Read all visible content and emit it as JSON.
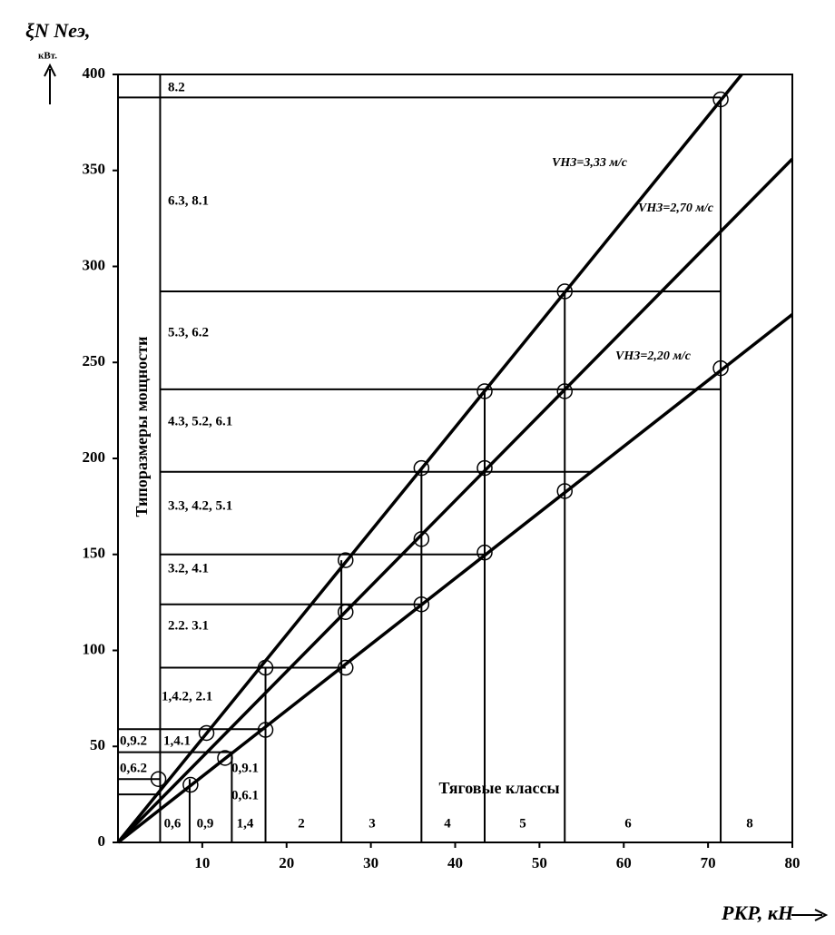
{
  "chart_data": {
    "type": "line",
    "y_label": "ξN Nеэ,",
    "y_unit": "кВт.",
    "x_label": "PКР, кН",
    "xlim": [
      0,
      80
    ],
    "ylim": [
      0,
      400
    ],
    "xticks": [
      10,
      20,
      30,
      40,
      50,
      60,
      70,
      80
    ],
    "yticks": [
      0,
      50,
      100,
      150,
      200,
      250,
      300,
      350,
      400
    ],
    "series": [
      {
        "name": "VНЗ=3,33 м/с",
        "color": "#000000",
        "x": [
          0,
          74
        ],
        "values": [
          0,
          400
        ],
        "markers": {
          "x": [
            10.5,
            17.5,
            27,
            36,
            43.5,
            53,
            71.5
          ],
          "values": [
            57,
            91,
            147,
            195,
            235,
            287,
            387
          ]
        }
      },
      {
        "name": "VНЗ=2,70 м/с",
        "color": "#000000",
        "x": [
          0,
          80
        ],
        "values": [
          0,
          356
        ],
        "markers": {
          "x": [
            12.7,
            27,
            36,
            43.5,
            53
          ],
          "values": [
            44,
            120,
            158,
            195,
            235
          ]
        }
      },
      {
        "name": "VНЗ=2,20 м/с",
        "color": "#000000",
        "x": [
          0,
          80
        ],
        "values": [
          0,
          275
        ],
        "markers": {
          "x": [
            4.8,
            8.6,
            17.5,
            27,
            36,
            43.5,
            53,
            71.5
          ],
          "values": [
            33,
            30,
            58.6,
            91,
            124,
            151,
            183,
            247
          ]
        }
      }
    ],
    "hlines": [
      {
        "value": 388,
        "from": 0,
        "to": 71.5
      },
      {
        "value": 287,
        "from": 5,
        "to": 71.5
      },
      {
        "value": 236,
        "from": 5,
        "to": 71.5
      },
      {
        "value": 193,
        "from": 5,
        "to": 56
      },
      {
        "value": 150,
        "from": 5,
        "to": 43.5
      },
      {
        "value": 124,
        "from": 5,
        "to": 36
      },
      {
        "value": 91,
        "from": 5,
        "to": 27
      },
      {
        "value": 59,
        "from": 0,
        "to": 17.5
      },
      {
        "value": 47,
        "from": 0,
        "to": 13.5
      },
      {
        "value": 33,
        "from": 0,
        "to": 5
      },
      {
        "value": 25,
        "from": 0,
        "to": 5
      }
    ],
    "vlines": [
      {
        "value": 5,
        "to": 400
      },
      {
        "value": 8.5,
        "to": 33
      },
      {
        "value": 13.5,
        "to": 47
      },
      {
        "value": 17.5,
        "to": 91
      },
      {
        "value": 26.5,
        "to": 147
      },
      {
        "value": 36,
        "to": 195
      },
      {
        "value": 43.5,
        "to": 236
      },
      {
        "value": 53,
        "to": 287
      },
      {
        "value": 71.5,
        "to": 388
      }
    ],
    "power_sizes_title": "Типоразмеры мощности",
    "power_sizes": [
      "8.2",
      "6.3, 8.1",
      "5.3, 6.2",
      "4.3, 5.2, 6.1",
      "3.3, 4.2, 5.1",
      "3.2, 4.1",
      "2.2. 3.1",
      "1,4.2, 2.1",
      "0,9.2",
      "1,4.1",
      "0,6.2",
      "0,9.1",
      "0,6.1"
    ],
    "classes_title": "Тяговые классы",
    "classes": [
      "0,6",
      "0,9",
      "1,4",
      "2",
      "3",
      "4",
      "5",
      "6",
      "8"
    ]
  }
}
